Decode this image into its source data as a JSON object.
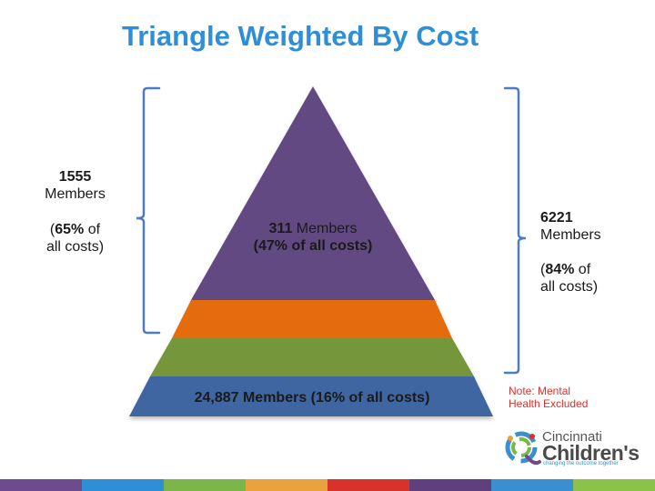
{
  "title": "Triangle Weighted By Cost",
  "left_group": {
    "count": "1555",
    "unit": "Members",
    "pct": "65%",
    "pct_prefix": "(",
    "pct_suffix": " of",
    "pct_line2": "all costs)"
  },
  "right_group": {
    "count": "6221",
    "unit": "Members",
    "pct": "84%",
    "pct_prefix": "(",
    "pct_suffix": " of",
    "pct_line2": "all costs)"
  },
  "top_tier": {
    "count": "311",
    "unit": " Members",
    "pct_open": "(",
    "pct": "47%",
    "pct_rest": " of all costs)"
  },
  "bottom_tier": {
    "count": "24,887 Members",
    "pct_open": " (",
    "pct": "16%",
    "pct_rest": " of all costs)"
  },
  "note": {
    "line1": "Note: Mental",
    "line2": "Health Excluded"
  },
  "logo": {
    "line1": "Cincinnati",
    "line2": "Children's",
    "tagline": "changing the outcome together"
  },
  "colors": {
    "title": "#2e8fd6",
    "tier_top": "#634a82",
    "tier_orange": "#e46c0a",
    "tier_green": "#76963b",
    "tier_blue": "#3f66a1",
    "bracket": "#4f7ac7",
    "note": "#d9322b"
  },
  "footer_colors": [
    "#6e4a8e",
    "#2e8fd6",
    "#7ab648",
    "#e8a33c",
    "#d9322b",
    "#5f3f7e",
    "#3a8fd0",
    "#8bc34a"
  ]
}
